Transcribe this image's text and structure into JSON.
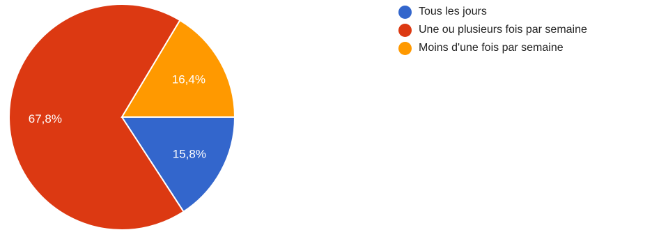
{
  "chart_data": {
    "type": "pie",
    "title": "",
    "categories": [
      "Tous les jours",
      "Une ou plusieurs fois par semaine",
      "Moins d'une fois par semaine"
    ],
    "values": [
      15.8,
      67.8,
      16.4
    ],
    "value_labels": [
      "15,8%",
      "67,8%",
      "16,4%"
    ],
    "colors": [
      "#3366cc",
      "#dc3912",
      "#ff9900"
    ],
    "start_angle_deg": 90,
    "direction": "clockwise",
    "legend_position": "right"
  }
}
